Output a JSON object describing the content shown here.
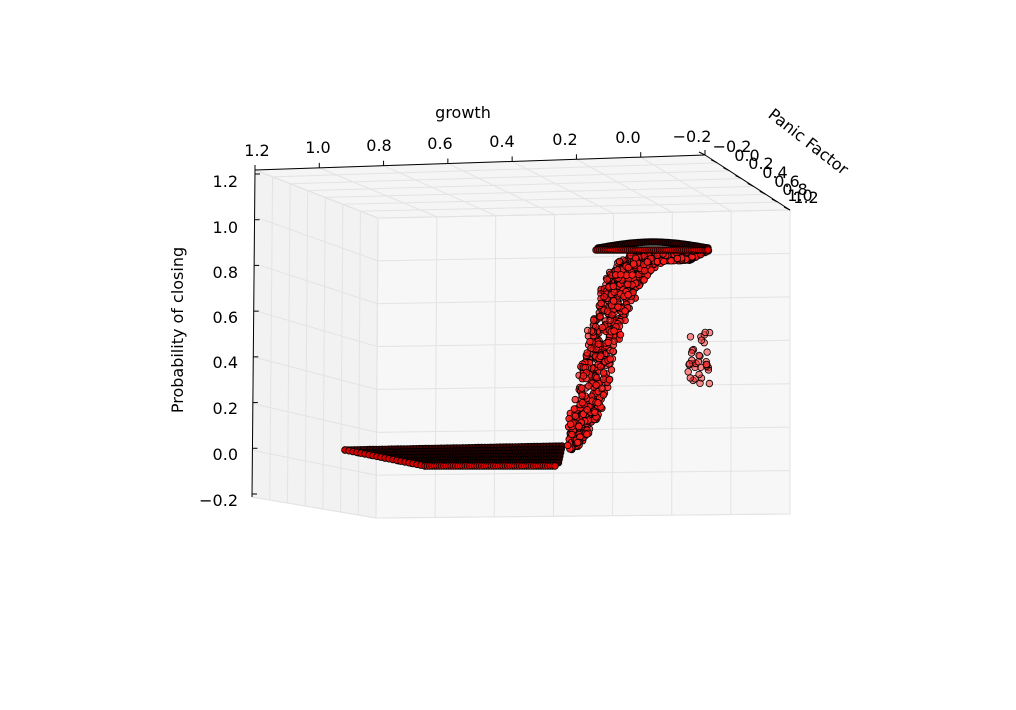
{
  "chart_data": {
    "type": "scatter",
    "projection": "3d",
    "xlabel": "growth",
    "ylabel": "Panic Factor",
    "zlabel": "Probability of closing",
    "xlim": [
      -0.2,
      1.2
    ],
    "ylim": [
      -0.2,
      1.2
    ],
    "zlim": [
      -0.2,
      1.2
    ],
    "x_ticks": [
      "1.2",
      "1.0",
      "0.8",
      "0.6",
      "0.4",
      "0.2",
      "0.0",
      "−0.2"
    ],
    "y_ticks": [
      "−0.2",
      "0.0",
      "0.2",
      "0.4",
      "0.6",
      "0.8",
      "1.0",
      "1.2"
    ],
    "z_ticks": [
      "1.2",
      "1.0",
      "0.8",
      "0.6",
      "0.4",
      "0.2",
      "0.0",
      "−0.2"
    ],
    "grid": true,
    "marker": {
      "shape": "circle",
      "face_color": "#ff0000",
      "edge_color": "#000000"
    },
    "series": [
      {
        "points_sample": [
          {
            "growth": 1.0,
            "panic": 0.0,
            "prob": 0.0
          },
          {
            "growth": 0.6,
            "panic": 0.5,
            "prob": 0.0
          },
          {
            "growth": 0.3,
            "panic": 1.0,
            "prob": 0.0
          },
          {
            "growth": 0.25,
            "panic": 0.2,
            "prob": 0.05
          },
          {
            "growth": 0.2,
            "panic": 0.3,
            "prob": 0.2
          },
          {
            "growth": 0.15,
            "panic": 0.5,
            "prob": 0.45
          },
          {
            "growth": 0.1,
            "panic": 0.6,
            "prob": 0.7
          },
          {
            "growth": 0.05,
            "panic": 0.7,
            "prob": 0.9
          },
          {
            "growth": 0.0,
            "panic": 0.8,
            "prob": 1.0
          },
          {
            "growth": -0.1,
            "panic": 1.0,
            "prob": 1.0
          }
        ]
      }
    ]
  }
}
